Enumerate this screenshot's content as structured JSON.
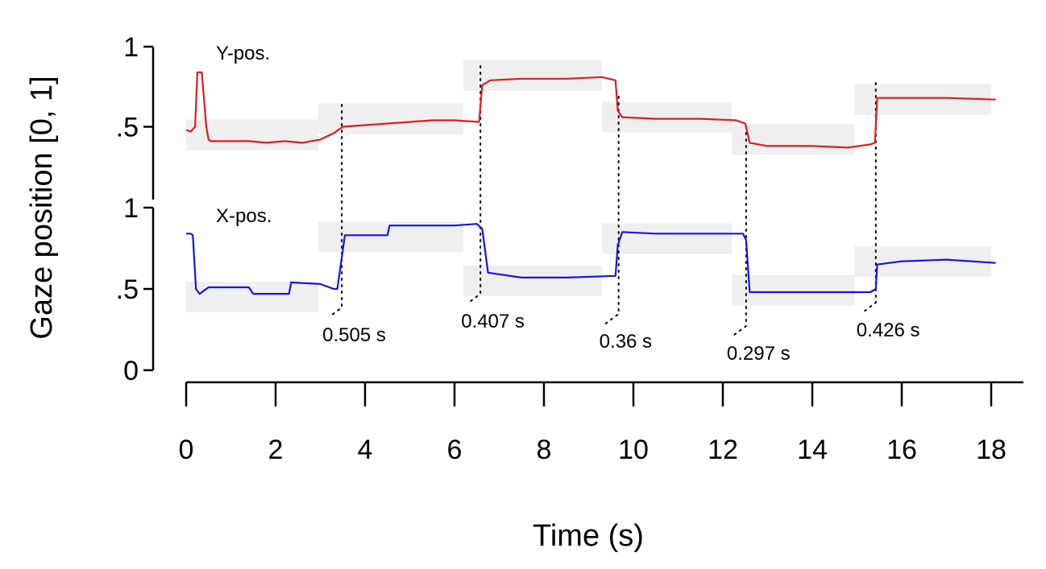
{
  "chart_data": {
    "type": "line",
    "xlabel": "Time (s)",
    "ylabel": "Gaze position [0, 1]",
    "xlim": [
      0,
      18.5
    ],
    "xticks": [
      0,
      2,
      4,
      6,
      8,
      10,
      12,
      14,
      16,
      18
    ],
    "panels": [
      {
        "name": "Y-pos.",
        "ylim": [
          0,
          1
        ],
        "yticks": [
          {
            "value": 0.5,
            "label": ".5"
          },
          {
            "value": 1,
            "label": "1"
          }
        ],
        "color": "#e31a1c",
        "targets": [
          {
            "x0": 0.0,
            "x1": 2.95,
            "y": 0.45
          },
          {
            "x0": 2.95,
            "x1": 6.2,
            "y": 0.55
          },
          {
            "x0": 6.2,
            "x1": 9.3,
            "y": 0.82
          },
          {
            "x0": 9.3,
            "x1": 12.2,
            "y": 0.56
          },
          {
            "x0": 12.2,
            "x1": 14.95,
            "y": 0.42
          },
          {
            "x0": 14.95,
            "x1": 18.0,
            "y": 0.67
          }
        ],
        "x": [
          0,
          0.1,
          0.2,
          0.25,
          0.35,
          0.45,
          0.5,
          0.55,
          1.0,
          1.4,
          1.8,
          2.2,
          2.6,
          3.0,
          3.3,
          3.5,
          4.0,
          4.5,
          5.0,
          5.5,
          6.0,
          6.55,
          6.62,
          6.8,
          7.5,
          8.5,
          9.3,
          9.6,
          9.65,
          9.75,
          10.5,
          11.5,
          12.3,
          12.5,
          12.6,
          13.0,
          14.0,
          14.8,
          15.3,
          15.4,
          15.45,
          16.0,
          17.0,
          18.1
        ],
        "y": [
          0.48,
          0.47,
          0.5,
          0.84,
          0.84,
          0.5,
          0.42,
          0.41,
          0.41,
          0.41,
          0.4,
          0.41,
          0.4,
          0.42,
          0.46,
          0.5,
          0.51,
          0.52,
          0.53,
          0.54,
          0.54,
          0.53,
          0.76,
          0.79,
          0.8,
          0.8,
          0.81,
          0.79,
          0.6,
          0.56,
          0.55,
          0.55,
          0.54,
          0.52,
          0.4,
          0.38,
          0.38,
          0.37,
          0.39,
          0.4,
          0.68,
          0.68,
          0.68,
          0.67
        ]
      },
      {
        "name": "X-pos.",
        "ylim": [
          0,
          1
        ],
        "yticks": [
          {
            "value": 0,
            "label": "0"
          },
          {
            "value": 0.5,
            "label": ".5"
          },
          {
            "value": 1,
            "label": "1"
          }
        ],
        "color": "#1515e8",
        "targets": [
          {
            "x0": 0.0,
            "x1": 2.95,
            "y": 0.45
          },
          {
            "x0": 2.95,
            "x1": 6.2,
            "y": 0.82
          },
          {
            "x0": 6.2,
            "x1": 9.3,
            "y": 0.55
          },
          {
            "x0": 9.3,
            "x1": 12.2,
            "y": 0.81
          },
          {
            "x0": 12.2,
            "x1": 14.95,
            "y": 0.49
          },
          {
            "x0": 14.95,
            "x1": 18.0,
            "y": 0.67
          }
        ],
        "x": [
          0,
          0.1,
          0.15,
          0.22,
          0.3,
          0.5,
          1.4,
          1.5,
          2.3,
          2.35,
          3.0,
          3.3,
          3.38,
          3.55,
          4.5,
          4.55,
          5.5,
          6.0,
          6.5,
          6.62,
          6.75,
          7.5,
          8.5,
          9.6,
          9.65,
          9.75,
          10.5,
          11.5,
          12.45,
          12.52,
          12.6,
          13.5,
          14.5,
          15.3,
          15.42,
          15.45,
          16.0,
          17.0,
          18.1
        ],
        "y": [
          0.84,
          0.84,
          0.83,
          0.5,
          0.47,
          0.51,
          0.51,
          0.47,
          0.47,
          0.54,
          0.53,
          0.5,
          0.5,
          0.83,
          0.83,
          0.89,
          0.89,
          0.89,
          0.9,
          0.87,
          0.6,
          0.57,
          0.57,
          0.58,
          0.77,
          0.85,
          0.84,
          0.84,
          0.84,
          0.8,
          0.48,
          0.48,
          0.48,
          0.48,
          0.5,
          0.65,
          0.67,
          0.68,
          0.66
        ]
      }
    ],
    "annotations": [
      {
        "x": 3.48,
        "label": "0.505 s"
      },
      {
        "x": 6.58,
        "label": "0.407 s"
      },
      {
        "x": 9.67,
        "label": "0.36 s"
      },
      {
        "x": 12.52,
        "label": "0.297 s"
      },
      {
        "x": 15.42,
        "label": "0.426 s"
      }
    ]
  }
}
